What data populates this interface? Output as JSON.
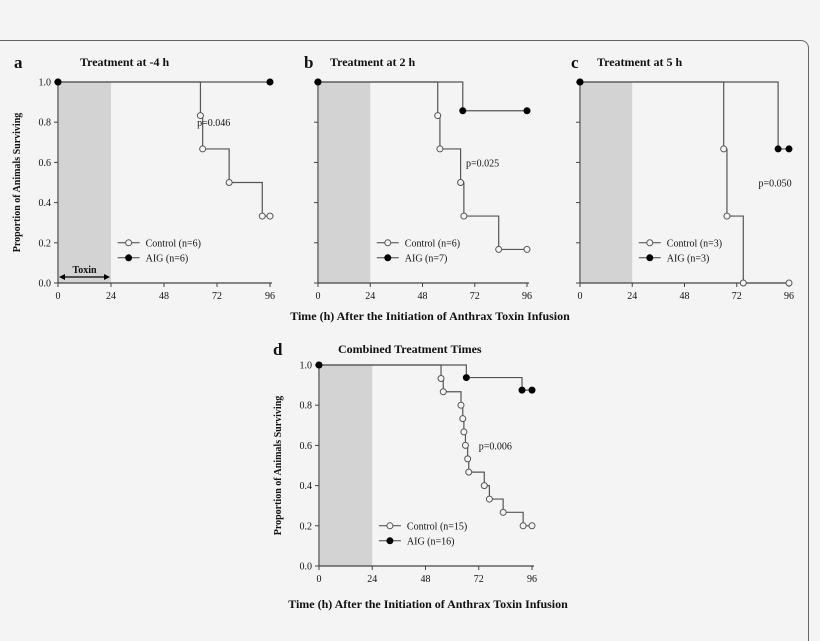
{
  "shared_xlabel": "Time (h) After the Initiation of Anthrax Toxin Infusion",
  "colors": {
    "shade": "#d3d3d3",
    "line": "#555555",
    "aig_marker": "#000000",
    "control_marker": "#f4f4f4"
  },
  "chart_data": [
    {
      "panel": "a",
      "type": "line",
      "step": true,
      "title": "Treatment at -4 h",
      "ylabel": "Proportion of Animals Surviving",
      "xlim": [
        0,
        96
      ],
      "ylim": [
        0,
        1
      ],
      "xticks": [
        "0",
        "24",
        "48",
        "72",
        "96"
      ],
      "yticks": [
        "0.0",
        "0.2",
        "0.4",
        "0.6",
        "0.8",
        "1.0"
      ],
      "shaded_interval": [
        0,
        24
      ],
      "annotation": "Toxin",
      "pvalue": "p=0.046",
      "legend": "bottom-center",
      "series": [
        {
          "name": "Control (n=6)",
          "marker": "open",
          "points": [
            [
              0,
              1
            ],
            [
              64.5,
              0.833
            ],
            [
              65.5,
              0.667
            ],
            [
              77.5,
              0.5
            ],
            [
              92.5,
              0.333
            ],
            [
              96,
              0.333
            ]
          ]
        },
        {
          "name": "AIG (n=6)",
          "marker": "filled",
          "points": [
            [
              0,
              1
            ],
            [
              96,
              1
            ]
          ]
        }
      ]
    },
    {
      "panel": "b",
      "type": "line",
      "step": true,
      "title": "Treatment at 2 h",
      "xlim": [
        0,
        96
      ],
      "ylim": [
        0,
        1
      ],
      "xticks": [
        "0",
        "24",
        "48",
        "72",
        "96"
      ],
      "shaded_interval": [
        0,
        24
      ],
      "pvalue": "p=0.025",
      "legend": "bottom-center",
      "series": [
        {
          "name": "Control (n=6)",
          "marker": "open",
          "points": [
            [
              0,
              1
            ],
            [
              55,
              0.833
            ],
            [
              56,
              0.667
            ],
            [
              65.5,
              0.5
            ],
            [
              67,
              0.333
            ],
            [
              83,
              0.167
            ],
            [
              96,
              0.167
            ]
          ]
        },
        {
          "name": "AIG (n=7)",
          "marker": "filled",
          "points": [
            [
              0,
              1
            ],
            [
              66.5,
              0.857
            ],
            [
              96,
              0.857
            ]
          ]
        }
      ]
    },
    {
      "panel": "c",
      "type": "line",
      "step": true,
      "title": "Treatment at 5 h",
      "xlim": [
        0,
        96
      ],
      "ylim": [
        0,
        1
      ],
      "xticks": [
        "0",
        "24",
        "48",
        "72",
        "96"
      ],
      "shaded_interval": [
        0,
        24
      ],
      "pvalue": "p=0.050",
      "legend": "bottom-center",
      "series": [
        {
          "name": "Control (n=3)",
          "marker": "open",
          "points": [
            [
              0,
              1
            ],
            [
              66,
              0.667
            ],
            [
              67.5,
              0.333
            ],
            [
              75,
              0
            ],
            [
              96,
              0
            ]
          ]
        },
        {
          "name": "AIG (n=3)",
          "marker": "filled",
          "points": [
            [
              0,
              1
            ],
            [
              91,
              0.667
            ],
            [
              96,
              0.667
            ]
          ]
        }
      ]
    },
    {
      "panel": "d",
      "type": "line",
      "step": true,
      "title": "Combined Treatment Times",
      "ylabel": "Proportion of Animals Surviving",
      "xlim": [
        0,
        96
      ],
      "ylim": [
        0,
        1
      ],
      "xticks": [
        "0",
        "24",
        "48",
        "72",
        "96"
      ],
      "yticks": [
        "0.0",
        "0.2",
        "0.4",
        "0.6",
        "0.8",
        "1.0"
      ],
      "shaded_interval": [
        0,
        24
      ],
      "pvalue": "p=0.006",
      "legend": "bottom-center",
      "series": [
        {
          "name": "Control (n=15)",
          "marker": "open",
          "points": [
            [
              0,
              1
            ],
            [
              55,
              0.933
            ],
            [
              56,
              0.867
            ],
            [
              64,
              0.8
            ],
            [
              64.8,
              0.733
            ],
            [
              65.3,
              0.667
            ],
            [
              66,
              0.6
            ],
            [
              67,
              0.533
            ],
            [
              67.5,
              0.467
            ],
            [
              74.5,
              0.4
            ],
            [
              76.8,
              0.333
            ],
            [
              83,
              0.267
            ],
            [
              92,
              0.2
            ],
            [
              96,
              0.2
            ]
          ]
        },
        {
          "name": "AIG (n=16)",
          "marker": "filled",
          "points": [
            [
              0,
              1
            ],
            [
              66.4,
              0.9375
            ],
            [
              91.5,
              0.875
            ],
            [
              96,
              0.875
            ]
          ]
        }
      ]
    }
  ]
}
